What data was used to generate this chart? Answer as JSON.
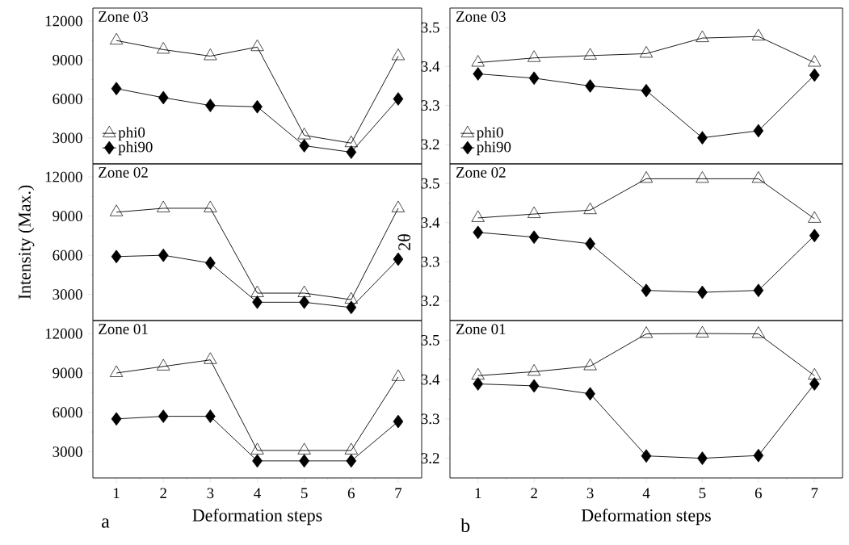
{
  "chart_data": [
    {
      "type": "line",
      "annotations": [
        "Zone 03",
        "a"
      ],
      "x": [
        1,
        2,
        3,
        4,
        5,
        6,
        7
      ],
      "xlim": [
        0.5,
        7.5
      ],
      "xticks": [
        1,
        2,
        3,
        4,
        5,
        6,
        7
      ],
      "ylim": [
        1000,
        13000
      ],
      "yticks": [
        3000,
        6000,
        9000,
        12000
      ],
      "tick_labels": "y",
      "legend": "bottom left",
      "line_style": "solid",
      "series": [
        {
          "name": "phi0",
          "color": "#000000",
          "marker": "triangle",
          "values": [
            10500,
            9800,
            9300,
            10000,
            3200,
            2600,
            9300
          ]
        },
        {
          "name": "phi90",
          "color": "#000000",
          "marker": "diamond",
          "values": [
            6800,
            6100,
            5500,
            5400,
            2400,
            1900,
            6000
          ]
        }
      ]
    },
    {
      "type": "line",
      "annotations": [
        "Zone 03"
      ],
      "x": [
        1,
        2,
        3,
        4,
        5,
        6,
        7
      ],
      "xlim": [
        0.5,
        7.5
      ],
      "xticks": [
        1,
        2,
        3,
        4,
        5,
        6,
        7
      ],
      "ylim": [
        3.15,
        3.55
      ],
      "yticks": [
        3.2,
        3.3,
        3.4,
        3.5
      ],
      "tick_labels": "y",
      "legend": "bottom left",
      "line_style": "solid",
      "series": [
        {
          "name": "phi0",
          "color": "#000000",
          "marker": "triangle",
          "values": [
            3.41,
            3.422,
            3.428,
            3.433,
            3.473,
            3.477,
            3.41
          ]
        },
        {
          "name": "phi90",
          "color": "#000000",
          "marker": "diamond",
          "values": [
            3.381,
            3.37,
            3.35,
            3.338,
            3.217,
            3.235,
            3.378
          ]
        }
      ]
    },
    {
      "type": "line",
      "annotations": [
        "Zone 02"
      ],
      "ylabel": "Intensity (Max.)",
      "x": [
        1,
        2,
        3,
        4,
        5,
        6,
        7
      ],
      "xlim": [
        0.5,
        7.5
      ],
      "xticks": [
        1,
        2,
        3,
        4,
        5,
        6,
        7
      ],
      "ylim": [
        1000,
        13000
      ],
      "yticks": [
        3000,
        6000,
        9000,
        12000
      ],
      "tick_labels": "y",
      "line_style": "solid",
      "series": [
        {
          "color": "#000000",
          "marker": "triangle",
          "values": [
            9300,
            9600,
            9600,
            3100,
            3100,
            2600,
            9600
          ]
        },
        {
          "color": "#000000",
          "marker": "diamond",
          "values": [
            5900,
            6000,
            5400,
            2400,
            2400,
            2000,
            5700
          ]
        }
      ]
    },
    {
      "type": "line",
      "annotations": [
        "Zone 02"
      ],
      "ylabel": "2θ",
      "x": [
        1,
        2,
        3,
        4,
        5,
        6,
        7
      ],
      "xlim": [
        0.5,
        7.5
      ],
      "xticks": [
        1,
        2,
        3,
        4,
        5,
        6,
        7
      ],
      "ylim": [
        3.15,
        3.55
      ],
      "yticks": [
        3.2,
        3.3,
        3.4,
        3.5
      ],
      "tick_labels": "y",
      "line_style": "solid",
      "series": [
        {
          "color": "#000000",
          "marker": "triangle",
          "values": [
            3.412,
            3.422,
            3.432,
            3.512,
            3.512,
            3.512,
            3.41
          ]
        },
        {
          "color": "#000000",
          "marker": "diamond",
          "values": [
            3.375,
            3.363,
            3.346,
            3.227,
            3.222,
            3.227,
            3.367
          ]
        }
      ]
    },
    {
      "type": "line",
      "annotations": [
        "Zone 01"
      ],
      "xlabel": "Deformation steps",
      "x": [
        1,
        2,
        3,
        4,
        5,
        6,
        7
      ],
      "xlim": [
        0.5,
        7.5
      ],
      "xticks": [
        1,
        2,
        3,
        4,
        5,
        6,
        7
      ],
      "ylim": [
        1000,
        13000
      ],
      "yticks": [
        3000,
        6000,
        9000,
        12000
      ],
      "line_style": "solid",
      "series": [
        {
          "color": "#000000",
          "marker": "triangle",
          "values": [
            9000,
            9500,
            10000,
            3100,
            3100,
            3100,
            8700
          ]
        },
        {
          "color": "#000000",
          "marker": "diamond",
          "values": [
            5500,
            5700,
            5700,
            2300,
            2300,
            2300,
            5300
          ]
        }
      ]
    },
    {
      "type": "line",
      "annotations": [
        "Zone 01",
        "b"
      ],
      "xlabel": "Deformation steps",
      "x": [
        1,
        2,
        3,
        4,
        5,
        6,
        7
      ],
      "xlim": [
        0.5,
        7.5
      ],
      "xticks": [
        1,
        2,
        3,
        4,
        5,
        6,
        7
      ],
      "ylim": [
        3.15,
        3.55
      ],
      "yticks": [
        3.2,
        3.3,
        3.4,
        3.5
      ],
      "line_style": "solid",
      "series": [
        {
          "color": "#000000",
          "marker": "triangle",
          "values": [
            3.41,
            3.42,
            3.434,
            3.516,
            3.517,
            3.516,
            3.41
          ]
        },
        {
          "color": "#000000",
          "marker": "diamond",
          "values": [
            3.389,
            3.384,
            3.364,
            3.206,
            3.2,
            3.207,
            3.389
          ]
        }
      ]
    }
  ]
}
